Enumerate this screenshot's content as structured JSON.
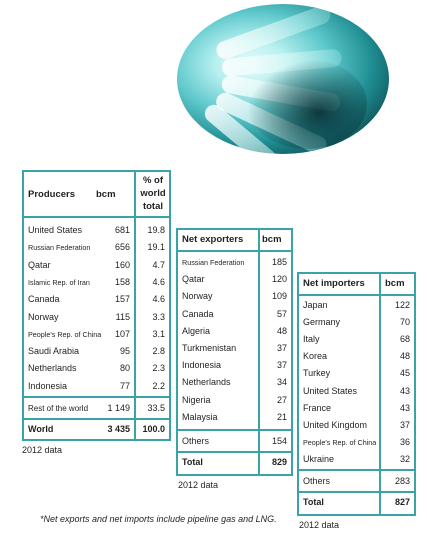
{
  "producers": {
    "headers": [
      "Producers",
      "bcm",
      "% of",
      "world",
      "total"
    ],
    "rows": [
      {
        "name": "United States",
        "bcm": "681",
        "pct": "19.8",
        "small": false
      },
      {
        "name": "Russian Federation",
        "bcm": "656",
        "pct": "19.1",
        "small": true
      },
      {
        "name": "Qatar",
        "bcm": "160",
        "pct": "4.7",
        "small": false
      },
      {
        "name": "Islamic Rep. of Iran",
        "bcm": "158",
        "pct": "4.6",
        "small": true
      },
      {
        "name": "Canada",
        "bcm": "157",
        "pct": "4.6",
        "small": false
      },
      {
        "name": "Norway",
        "bcm": "115",
        "pct": "3.3",
        "small": false
      },
      {
        "name": "People's Rep. of China",
        "bcm": "107",
        "pct": "3.1",
        "small": true
      },
      {
        "name": "Saudi Arabia",
        "bcm": "95",
        "pct": "2.8",
        "small": false
      },
      {
        "name": "Netherlands",
        "bcm": "80",
        "pct": "2.3",
        "small": false
      },
      {
        "name": "Indonesia",
        "bcm": "77",
        "pct": "2.2",
        "small": false
      }
    ],
    "rest": {
      "name": "Rest of the world",
      "bcm": "1 149",
      "pct": "33.5"
    },
    "total": {
      "name": "World",
      "bcm": "3 435",
      "pct": "100.0"
    },
    "note": "2012 data"
  },
  "exporters": {
    "headers": [
      "Net exporters",
      "bcm"
    ],
    "rows": [
      {
        "name": "Russian Federation",
        "bcm": "185",
        "small": true
      },
      {
        "name": "Qatar",
        "bcm": "120",
        "small": false
      },
      {
        "name": "Norway",
        "bcm": "109",
        "small": false
      },
      {
        "name": "Canada",
        "bcm": "57",
        "small": false
      },
      {
        "name": "Algeria",
        "bcm": "48",
        "small": false
      },
      {
        "name": "Turkmenistan",
        "bcm": "37",
        "small": false
      },
      {
        "name": "Indonesia",
        "bcm": "37",
        "small": false
      },
      {
        "name": "Netherlands",
        "bcm": "34",
        "small": false
      },
      {
        "name": "Nigeria",
        "bcm": "27",
        "small": false
      },
      {
        "name": "Malaysia",
        "bcm": "21",
        "small": false
      }
    ],
    "others": {
      "name": "Others",
      "bcm": "154"
    },
    "total": {
      "name": "Total",
      "bcm": "829"
    },
    "note": "2012 data"
  },
  "importers": {
    "headers": [
      "Net importers",
      "bcm"
    ],
    "rows": [
      {
        "name": "Japan",
        "bcm": "122",
        "small": false
      },
      {
        "name": "Germany",
        "bcm": "70",
        "small": false
      },
      {
        "name": "Italy",
        "bcm": "68",
        "small": false
      },
      {
        "name": "Korea",
        "bcm": "48",
        "small": false
      },
      {
        "name": "Turkey",
        "bcm": "45",
        "small": false
      },
      {
        "name": "United States",
        "bcm": "43",
        "small": false
      },
      {
        "name": "France",
        "bcm": "43",
        "small": false
      },
      {
        "name": "United Kingdom",
        "bcm": "37",
        "small": false
      },
      {
        "name": "People's Rep. of China",
        "bcm": "36",
        "small": true
      },
      {
        "name": "Ukraine",
        "bcm": "32",
        "small": false
      }
    ],
    "others": {
      "name": "Others",
      "bcm": "283"
    },
    "total": {
      "name": "Total",
      "bcm": "827"
    },
    "note": "2012 data"
  },
  "footnote": "*Net exports and net imports include pipeline gas and LNG.",
  "colors": {
    "border": "#3aa3a8",
    "photo": "#1f8e93"
  }
}
